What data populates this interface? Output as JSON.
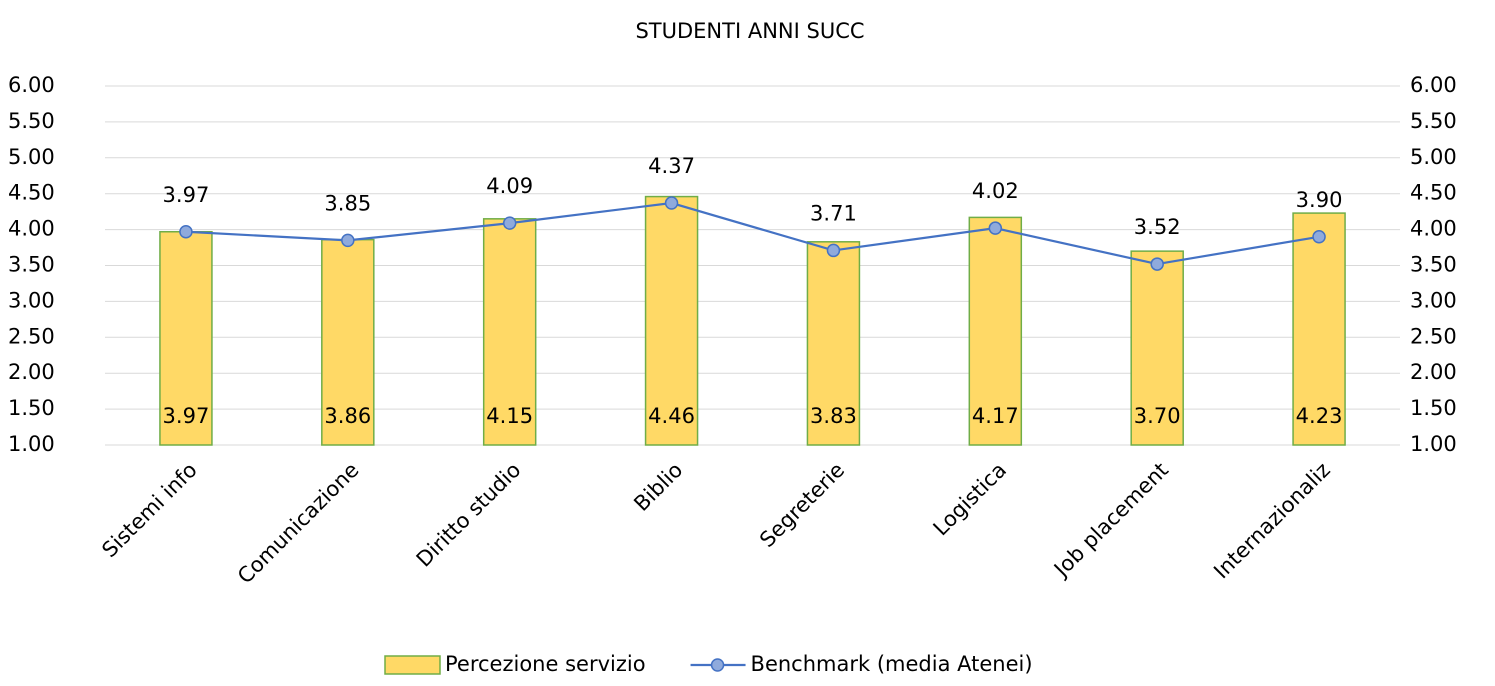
{
  "chart_data": {
    "type": "combo",
    "title": "STUDENTI ANNI SUCC",
    "categories": [
      "Sistemi info",
      "Comunicazione",
      "Diritto studio",
      "Biblio",
      "Segreterie",
      "Logistica",
      "Job placement",
      "Internazionaliz"
    ],
    "series": [
      {
        "name": "Percezione servizio",
        "type": "bar",
        "color": "#FFD966",
        "border_color": "#70AD47",
        "values": [
          3.97,
          3.86,
          4.15,
          4.46,
          3.83,
          4.17,
          3.7,
          4.23
        ],
        "value_labels": [
          "3.97",
          "3.86",
          "4.15",
          "4.46",
          "3.83",
          "4.17",
          "3.70",
          "4.23"
        ]
      },
      {
        "name": "Benchmark (media Atenei)",
        "type": "line",
        "axis": "y2",
        "color": "#4472C4",
        "marker_color": "#8FAADC",
        "values": [
          3.97,
          3.85,
          4.09,
          4.37,
          3.71,
          4.02,
          3.52,
          3.9
        ],
        "value_labels": [
          "3.97",
          "3.85",
          "4.09",
          "4.37",
          "3.71",
          "4.02",
          "3.52",
          "3.90"
        ]
      }
    ],
    "ylim": [
      1,
      6
    ],
    "yticks": [
      {
        "value": 1,
        "label": "1.00"
      },
      {
        "value": 1.5,
        "label": "1.50"
      },
      {
        "value": 2,
        "label": "2.00"
      },
      {
        "value": 2.5,
        "label": "2.50"
      },
      {
        "value": 3,
        "label": "3.00"
      },
      {
        "value": 3.5,
        "label": "3.50"
      },
      {
        "value": 4,
        "label": "4.00"
      },
      {
        "value": 4.5,
        "label": "4.50"
      },
      {
        "value": 5,
        "label": "5.00"
      },
      {
        "value": 5.5,
        "label": "5.50"
      },
      {
        "value": 6,
        "label": "6.00"
      }
    ],
    "y2lim": [
      1,
      6
    ],
    "y2ticks": [
      {
        "value": 1,
        "label": "1.00"
      },
      {
        "value": 1.5,
        "label": "1.50"
      },
      {
        "value": 2,
        "label": "2.00"
      },
      {
        "value": 2.5,
        "label": "2.50"
      },
      {
        "value": 3,
        "label": "3.00"
      },
      {
        "value": 3.5,
        "label": "3.50"
      },
      {
        "value": 4,
        "label": "4.00"
      },
      {
        "value": 4.5,
        "label": "4.50"
      },
      {
        "value": 5,
        "label": "5.00"
      },
      {
        "value": 5.5,
        "label": "5.50"
      },
      {
        "value": 6,
        "label": "6.00"
      }
    ],
    "grid": true,
    "legend": "bottom"
  }
}
